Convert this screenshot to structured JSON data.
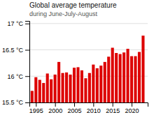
{
  "chart_data": {
    "type": "bar",
    "title": "Global average temperature",
    "subtitle": "during June-July-August",
    "x": [
      1994,
      1995,
      1996,
      1997,
      1998,
      1999,
      2000,
      2001,
      2002,
      2003,
      2004,
      2005,
      2006,
      2007,
      2008,
      2009,
      2010,
      2011,
      2012,
      2013,
      2014,
      2015,
      2016,
      2017,
      2018,
      2019,
      2020,
      2021,
      2022,
      2023
    ],
    "values": [
      15.72,
      15.98,
      15.93,
      15.87,
      16.05,
      15.94,
      16.03,
      16.27,
      16.06,
      16.07,
      16.03,
      16.16,
      16.17,
      16.11,
      15.96,
      16.06,
      16.22,
      16.15,
      16.2,
      16.27,
      16.37,
      16.54,
      16.44,
      16.42,
      16.45,
      16.52,
      16.38,
      16.38,
      16.46,
      16.77
    ],
    "color": "#dd0000",
    "xlim": [
      1993.3,
      2024.2
    ],
    "xticks": [
      1995,
      2000,
      2005,
      2010,
      2015,
      2020
    ],
    "ylim": [
      15.5,
      17.05
    ],
    "yticks": [
      {
        "value": 15.5,
        "label": "15.5 °C"
      },
      {
        "value": 16.0,
        "label": "16 °C"
      },
      {
        "value": 16.5,
        "label": "16.5 °C"
      },
      {
        "value": 17.0,
        "label": "17 °C"
      }
    ],
    "grid": true
  }
}
